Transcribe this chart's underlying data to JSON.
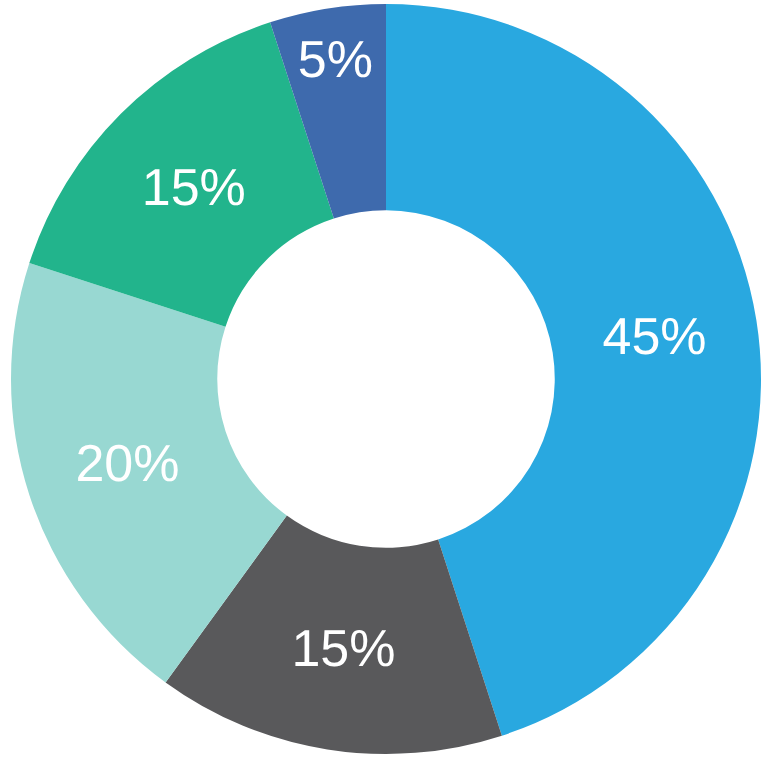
{
  "chart_data": {
    "type": "donut",
    "categories": [
      null,
      null,
      null,
      null,
      null
    ],
    "values": [
      45,
      15,
      20,
      15,
      5
    ],
    "colors": [
      "#29a8e0",
      "#59595b",
      "#98d8d2",
      "#22b48c",
      "#3e6aad"
    ],
    "value_labels": [
      "45%",
      "15%",
      "20%",
      "15%",
      "5%"
    ]
  }
}
